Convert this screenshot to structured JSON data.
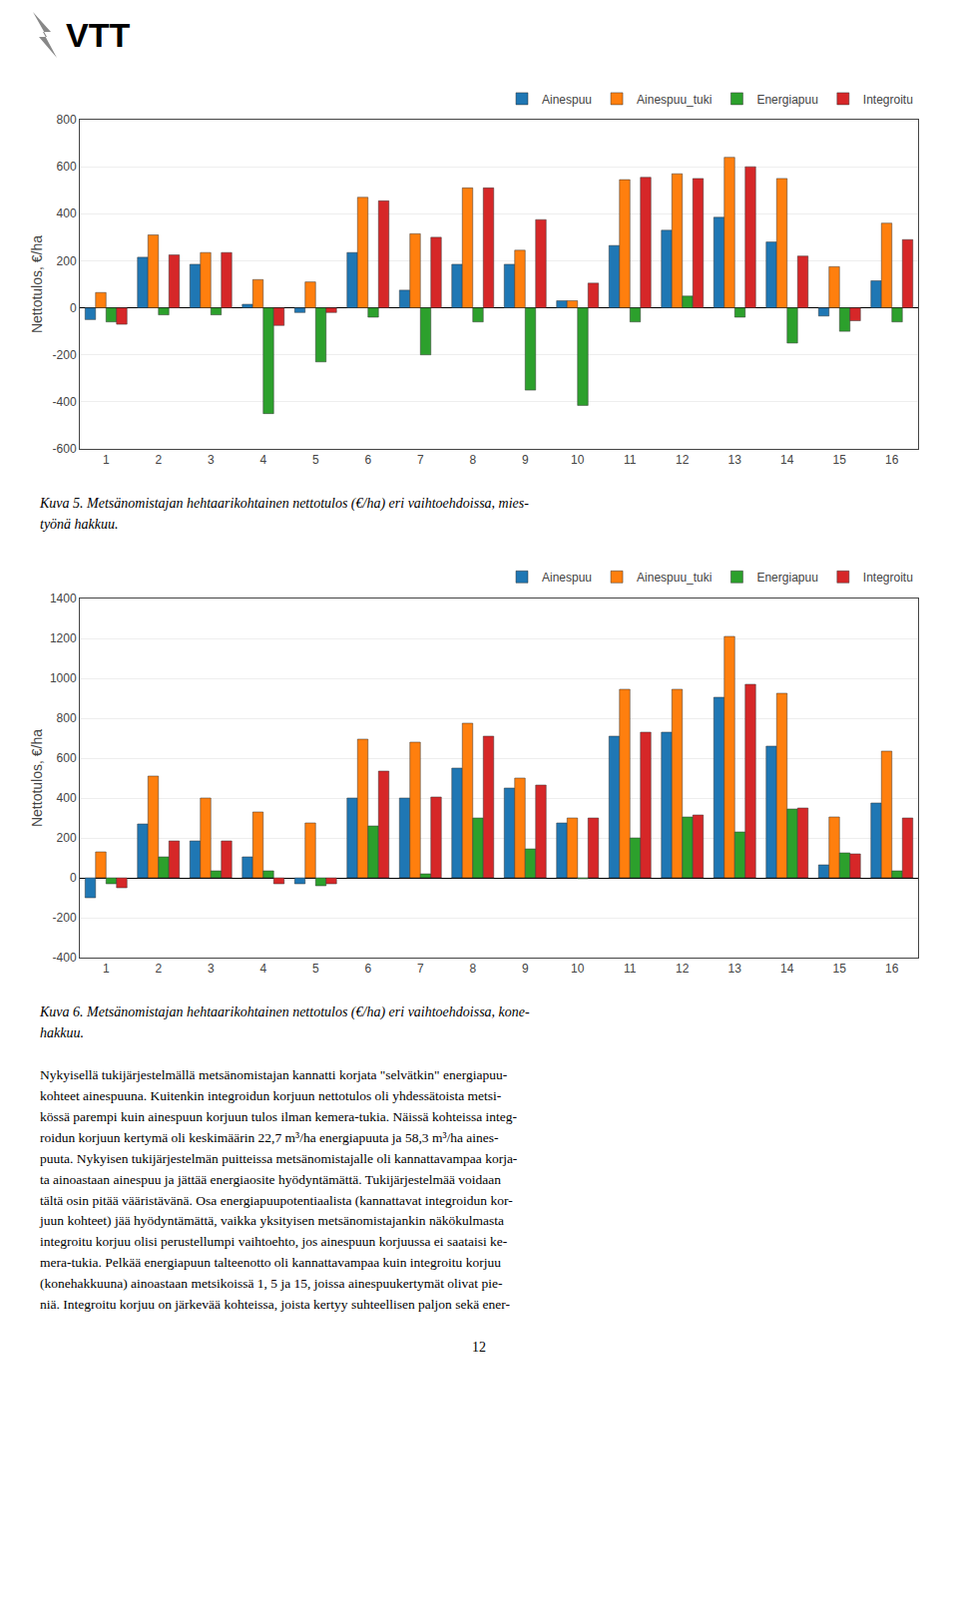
{
  "logo_text": "VTT",
  "chart_data": [
    {
      "type": "bar",
      "ylabel": "Nettotulos, €/ha",
      "categories": [
        1,
        2,
        3,
        4,
        5,
        6,
        7,
        8,
        9,
        10,
        11,
        12,
        13,
        14,
        15,
        16
      ],
      "series": [
        {
          "name": "Ainespuu",
          "values": [
            -50,
            215,
            185,
            15,
            -20,
            235,
            75,
            185,
            185,
            30,
            265,
            330,
            385,
            280,
            -35,
            115
          ]
        },
        {
          "name": "Ainespuu_tuki",
          "values": [
            65,
            310,
            235,
            120,
            110,
            470,
            315,
            510,
            245,
            30,
            545,
            570,
            640,
            550,
            175,
            360
          ]
        },
        {
          "name": "Energiapuu",
          "values": [
            -60,
            -30,
            -30,
            -450,
            -230,
            -40,
            -200,
            -60,
            -350,
            -415,
            -60,
            50,
            -40,
            -150,
            -100,
            -60
          ]
        },
        {
          "name": "Integroitu",
          "values": [
            -70,
            225,
            235,
            -75,
            -20,
            455,
            300,
            510,
            375,
            105,
            555,
            550,
            600,
            220,
            -55,
            290
          ]
        }
      ],
      "ylim": [
        -600,
        800
      ],
      "yticks": [
        -600,
        -400,
        -200,
        0,
        200,
        400,
        600,
        800
      ],
      "grid": true,
      "legend": "upper right",
      "caption": "Kuva 5. Metsänomistajan hehtaarikohtainen nettotulos (€/ha) eri vaihtoehdoissa, mies-\ntyönä hakkuu."
    },
    {
      "type": "bar",
      "ylabel": "Nettotulos, €/ha",
      "categories": [
        1,
        2,
        3,
        4,
        5,
        6,
        7,
        8,
        9,
        10,
        11,
        12,
        13,
        14,
        15,
        16
      ],
      "series": [
        {
          "name": "Ainespuu",
          "values": [
            -100,
            270,
            185,
            105,
            -30,
            400,
            400,
            550,
            450,
            275,
            710,
            730,
            905,
            660,
            65,
            375
          ]
        },
        {
          "name": "Ainespuu_tuki",
          "values": [
            130,
            510,
            400,
            330,
            275,
            695,
            680,
            775,
            500,
            300,
            945,
            945,
            1210,
            925,
            305,
            635
          ]
        },
        {
          "name": "Energiapuu",
          "values": [
            -30,
            105,
            35,
            35,
            -40,
            260,
            20,
            300,
            145,
            -5,
            200,
            305,
            230,
            345,
            125,
            35
          ]
        },
        {
          "name": "Integroitu",
          "values": [
            -50,
            185,
            185,
            -30,
            -30,
            535,
            405,
            710,
            465,
            300,
            730,
            315,
            970,
            350,
            120,
            300
          ]
        }
      ],
      "ylim": [
        -400,
        1400
      ],
      "yticks": [
        -400,
        -200,
        0,
        200,
        400,
        600,
        800,
        1000,
        1200,
        1400
      ],
      "grid": true,
      "legend": "upper right",
      "caption": "Kuva 6. Metsänomistajan hehtaarikohtainen nettotulos (€/ha) eri vaihtoehdoissa, kone-\nhakkuu."
    }
  ],
  "body_text": [
    "Nykyisellä tukijärjestelmällä metsänomistajan kannatti korjata \"selvätkin\" energiapuu-",
    "kohteet ainespuuna. Kuitenkin integroidun korjuun nettotulos oli yhdessätoista metsi-",
    "kössä parempi kuin ainespuun korjuun tulos ilman kemera-tukia. Näissä kohteissa integ-",
    "roidun korjuun kertymä oli keskimäärin 22,7 m³/ha energiapuuta ja 58,3 m³/ha aines-",
    "puuta. Nykyisen tukijärjestelmän puitteissa metsänomistajalle oli kannattavampaa korja-",
    "ta ainoastaan ainespuu ja jättää energiaosite hyödyntämättä. Tukijärjestelmää voidaan",
    "tältä osin pitää vääristävänä. Osa energiapuupotentiaalista (kannattavat integroidun kor-",
    "juun kohteet) jää hyödyntämättä, vaikka yksityisen metsänomistajankin näkökulmasta",
    "integroitu korjuu olisi perustellumpi vaihtoehto, jos ainespuun korjuussa ei saataisi ke-",
    "mera-tukia. Pelkää energiapuun talteenotto oli kannattavampaa kuin integroitu korjuu",
    "(konehakkuuna) ainoastaan metsikoissä 1, 5 ja 15, joissa ainespuukertymät olivat pie-",
    "niä. Integroitu korjuu on järkevää kohteissa, joista kertyy suhteellisen paljon sekä ener-"
  ],
  "page_number": "12"
}
